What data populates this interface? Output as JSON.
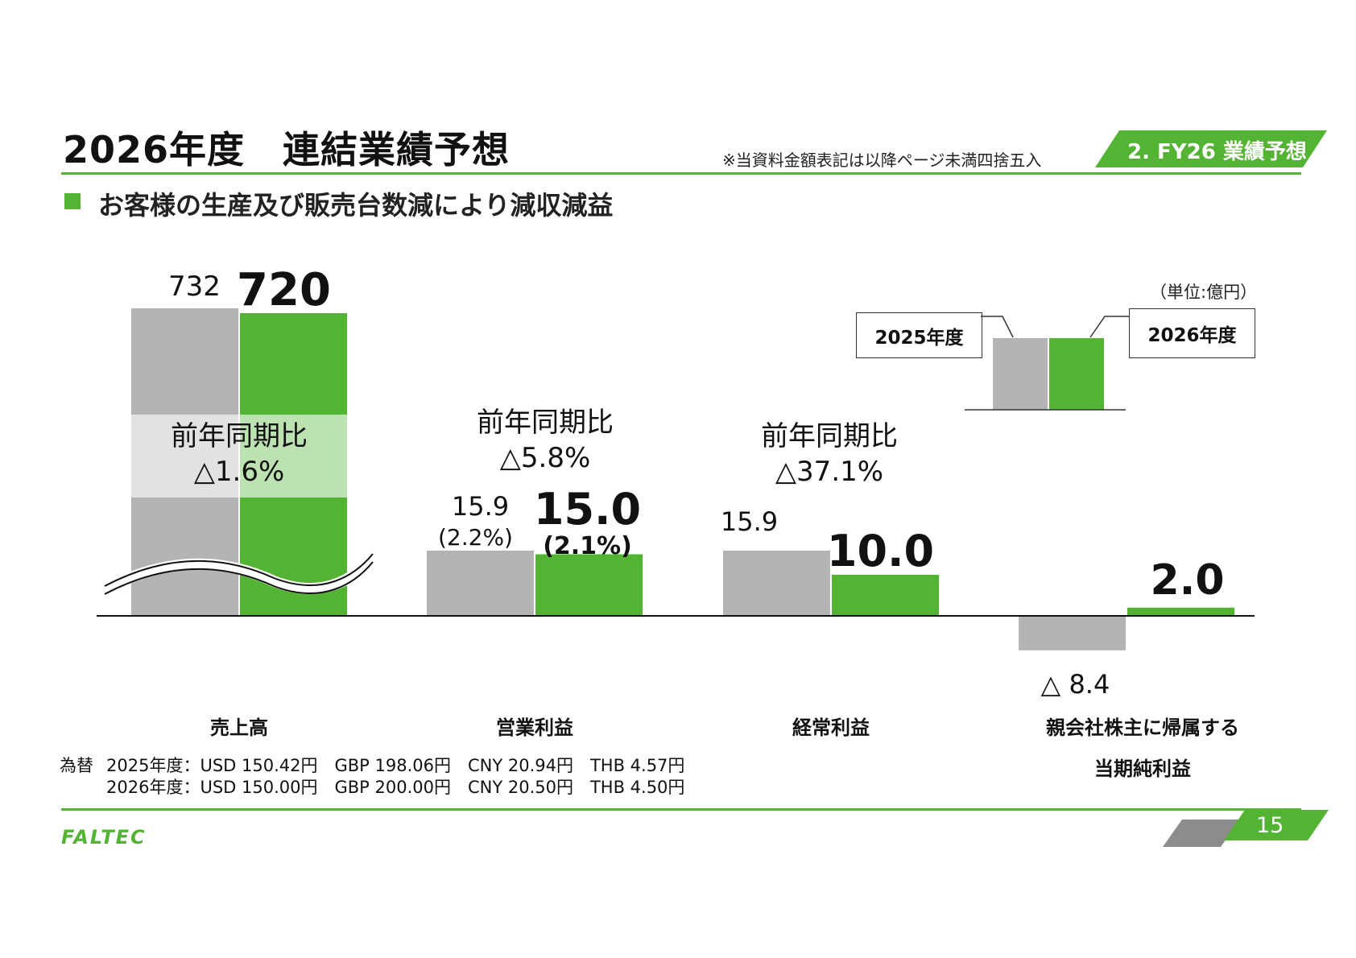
{
  "header": {
    "title": "2026年度　連結業績予想",
    "note": "※当資料金額表記は以降ページ未満四捨五入",
    "section_tag": "2. FY26 業績予想",
    "subtitle": "お客様の生産及び販売台数減により減収減益"
  },
  "legend": {
    "unit": "（単位:億円）",
    "prev_label": "2025年度",
    "curr_label": "2026年度"
  },
  "colors": {
    "prev": "#b4b4b4",
    "curr": "#52b432",
    "accent": "#52b432"
  },
  "chart_data": {
    "type": "bar",
    "categories": [
      "売上高",
      "営業利益",
      "経常利益",
      "親会社株主に帰属する当期純利益"
    ],
    "category_lines": [
      [
        "売上高"
      ],
      [
        "営業利益"
      ],
      [
        "経常利益"
      ],
      [
        "親会社株主に帰属する",
        "当期純利益"
      ]
    ],
    "series": [
      {
        "name": "2025年度",
        "values": [
          732,
          15.9,
          15.9,
          -8.4
        ]
      },
      {
        "name": "2026年度",
        "values": [
          720,
          15.0,
          10.0,
          2.0
        ]
      }
    ],
    "value_labels": {
      "prev": [
        "732",
        "15.9",
        "15.9",
        "△ 8.4"
      ],
      "curr": [
        "720",
        "15.0",
        "10.0",
        "2.0"
      ]
    },
    "margin_labels": {
      "prev": "(2.2%)",
      "curr": "(2.1%)"
    },
    "yoy": [
      [
        "前年同期比",
        "△1.6%"
      ],
      [
        "前年同期比",
        "△5.8%"
      ],
      [
        "前年同期比",
        "△37.1%"
      ]
    ],
    "axis_break": "売上高"
  },
  "fx": {
    "label": "為替",
    "rows": [
      "2025年度：USD 150.42円　GBP 198.06円　CNY 20.94円　THB 4.57円",
      "2026年度：USD 150.00円　GBP 200.00円　CNY 20.50円　THB 4.50円"
    ]
  },
  "footer": {
    "page": "15",
    "logo": "FALTEC"
  }
}
